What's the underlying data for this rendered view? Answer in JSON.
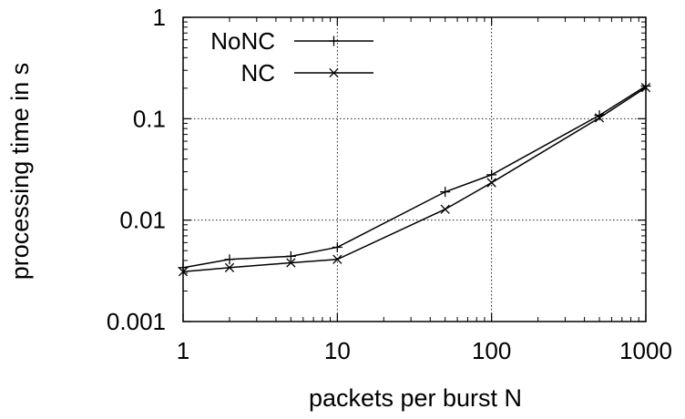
{
  "chart_data": {
    "type": "line",
    "title": "",
    "xlabel": "packets per burst N",
    "ylabel": "processing time in s",
    "xscale": "log",
    "yscale": "log",
    "xlim": [
      1,
      1000
    ],
    "ylim": [
      0.001,
      1
    ],
    "x_ticks": [
      1,
      10,
      100,
      1000
    ],
    "x_tick_labels": [
      "1",
      "10",
      "100",
      "1000"
    ],
    "y_ticks": [
      0.001,
      0.01,
      0.1,
      1
    ],
    "y_tick_labels": [
      "0.001",
      "0.01",
      "0.1",
      "1"
    ],
    "grid": true,
    "legend_position": "top-left",
    "series": [
      {
        "name": "NoNC",
        "marker": "plus",
        "color": "#000000",
        "x": [
          1,
          2,
          5,
          10,
          50,
          100,
          500,
          1000
        ],
        "y": [
          0.0034,
          0.0041,
          0.0044,
          0.0054,
          0.019,
          0.028,
          0.108,
          0.21
        ]
      },
      {
        "name": "NC",
        "marker": "cross",
        "color": "#000000",
        "x": [
          1,
          2,
          5,
          10,
          50,
          100,
          500,
          1000
        ],
        "y": [
          0.0031,
          0.0034,
          0.0038,
          0.0041,
          0.0128,
          0.0234,
          0.102,
          0.203
        ]
      }
    ]
  }
}
